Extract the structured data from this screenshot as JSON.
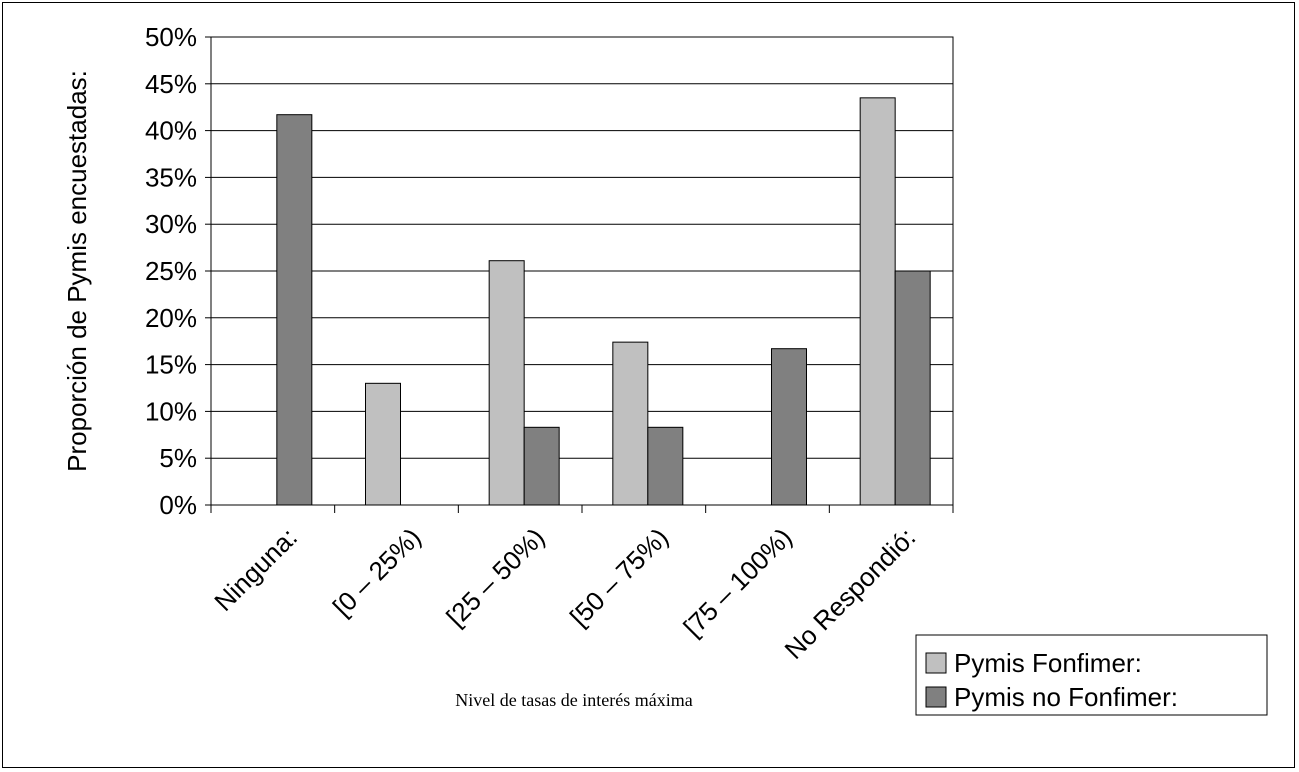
{
  "chart_data": {
    "type": "bar",
    "categories": [
      "Ninguna:",
      "[0 – 25%)",
      "[25 – 50%)",
      "[50 – 75%)",
      "[75 – 100%)",
      "No Respondió:"
    ],
    "series": [
      {
        "name": "Pymis Fonfimer:",
        "color": "#c0c0c0",
        "values": [
          0,
          13.0,
          26.1,
          17.4,
          0,
          43.5
        ]
      },
      {
        "name": "Pymis no Fonfimer:",
        "color": "#808080",
        "values": [
          41.7,
          0,
          8.3,
          8.3,
          16.7,
          25.0
        ]
      }
    ],
    "ylabel": "Proporción de Pymis encuestadas:",
    "xlabel": "Nivel de tasas de interés máxima",
    "ylim": [
      0,
      50
    ],
    "ytick_step": 5,
    "ytick_suffix": "%",
    "grid": true,
    "legend": "bottom-right"
  }
}
